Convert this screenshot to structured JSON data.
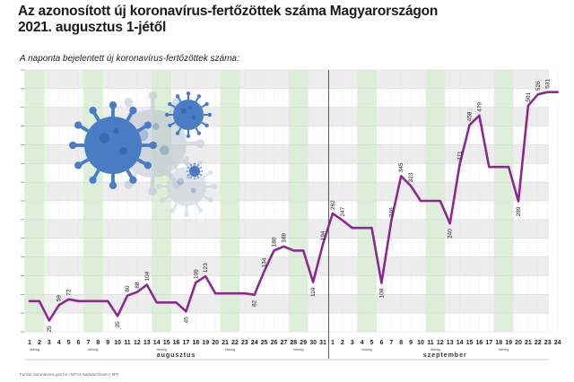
{
  "header": {
    "title_line1": "Az azonosított új koronavírus-fertőzöttek száma Magyarországon",
    "title_line2": "2021. augusztus 1-jétől",
    "subtitle": "A naponta bejelentett új koronavírus-fertőzöttek száma:"
  },
  "footer": {
    "source": "Forrás: koronavirus.gov.hu | MTVA Sajtóarchívum | MTI"
  },
  "colors": {
    "line": "#8b2a8e",
    "weekend_band": "#d8ecd3",
    "grid": "#d9d9d9",
    "band": "#ededed",
    "virus": "#4a7cc4"
  },
  "chart_data": {
    "type": "line",
    "title": "Az azonosított új koronavírus-fertőzöttek száma Magyarországon 2021. augusztus 1-jétől",
    "subtitle": "A naponta bejelentett új koronavírus-fertőzöttek száma:",
    "xlabel": "",
    "ylabel": "",
    "ylim": [
      0,
      580
    ],
    "grid": true,
    "months": [
      {
        "label": "augusztus",
        "start_index": 0,
        "end_index": 30
      },
      {
        "label": "szeptember",
        "start_index": 31,
        "end_index": 54
      }
    ],
    "weekend_label": "hétvég",
    "weekend_days": [
      [
        1,
        2
      ],
      [
        7,
        8
      ],
      [
        14,
        15
      ],
      [
        21,
        22
      ],
      [
        28,
        29
      ],
      [
        4,
        5
      ],
      [
        11,
        12
      ],
      [
        18,
        19
      ]
    ],
    "categories": [
      "1",
      "2",
      "3",
      "4",
      "5",
      "6",
      "7",
      "8",
      "9",
      "10",
      "11",
      "12",
      "13",
      "14",
      "15",
      "16",
      "17",
      "18",
      "19",
      "20",
      "21",
      "22",
      "23",
      "24",
      "25",
      "26",
      "27",
      "28",
      "29",
      "30",
      "31",
      "1",
      "2",
      "3",
      "4",
      "5",
      "6",
      "7",
      "8",
      "9",
      "10",
      "11",
      "12",
      "13",
      "14",
      "15",
      "16",
      "17",
      "18",
      "19",
      "20",
      "21",
      "22",
      "23",
      "24"
    ],
    "series": [
      {
        "values": [
          68,
          68,
          25,
          59,
          72,
          68,
          68,
          68,
          68,
          35,
          80,
          88,
          104,
          65,
          65,
          65,
          45,
          109,
          123,
          85,
          85,
          85,
          85,
          82,
          134,
          180,
          189,
          180,
          180,
          110,
          194,
          262,
          247,
          230,
          230,
          230,
          108,
          246,
          345,
          323,
          290,
          290,
          290,
          240,
          371,
          458,
          479,
          365,
          365,
          365,
          289,
          501,
          526,
          531,
          531
        ]
      }
    ],
    "point_labels": [
      {
        "i": 2,
        "text": "25"
      },
      {
        "i": 3,
        "text": "59"
      },
      {
        "i": 4,
        "text": "72"
      },
      {
        "i": 9,
        "text": "35"
      },
      {
        "i": 10,
        "text": "80"
      },
      {
        "i": 11,
        "text": "88"
      },
      {
        "i": 12,
        "text": "104"
      },
      {
        "i": 16,
        "text": "45"
      },
      {
        "i": 17,
        "text": "109"
      },
      {
        "i": 18,
        "text": "123"
      },
      {
        "i": 23,
        "text": "82"
      },
      {
        "i": 24,
        "text": "134"
      },
      {
        "i": 25,
        "text": "180"
      },
      {
        "i": 26,
        "text": "189"
      },
      {
        "i": 29,
        "text": "110"
      },
      {
        "i": 30,
        "text": "194"
      },
      {
        "i": 31,
        "text": "262"
      },
      {
        "i": 32,
        "text": "247"
      },
      {
        "i": 36,
        "text": "108"
      },
      {
        "i": 37,
        "text": "246"
      },
      {
        "i": 38,
        "text": "345"
      },
      {
        "i": 39,
        "text": "323"
      },
      {
        "i": 43,
        "text": "240"
      },
      {
        "i": 44,
        "text": "371"
      },
      {
        "i": 45,
        "text": "458"
      },
      {
        "i": 46,
        "text": "479"
      },
      {
        "i": 50,
        "text": "289"
      },
      {
        "i": 51,
        "text": "501"
      },
      {
        "i": 52,
        "text": "526"
      },
      {
        "i": 53,
        "text": "531"
      }
    ]
  }
}
